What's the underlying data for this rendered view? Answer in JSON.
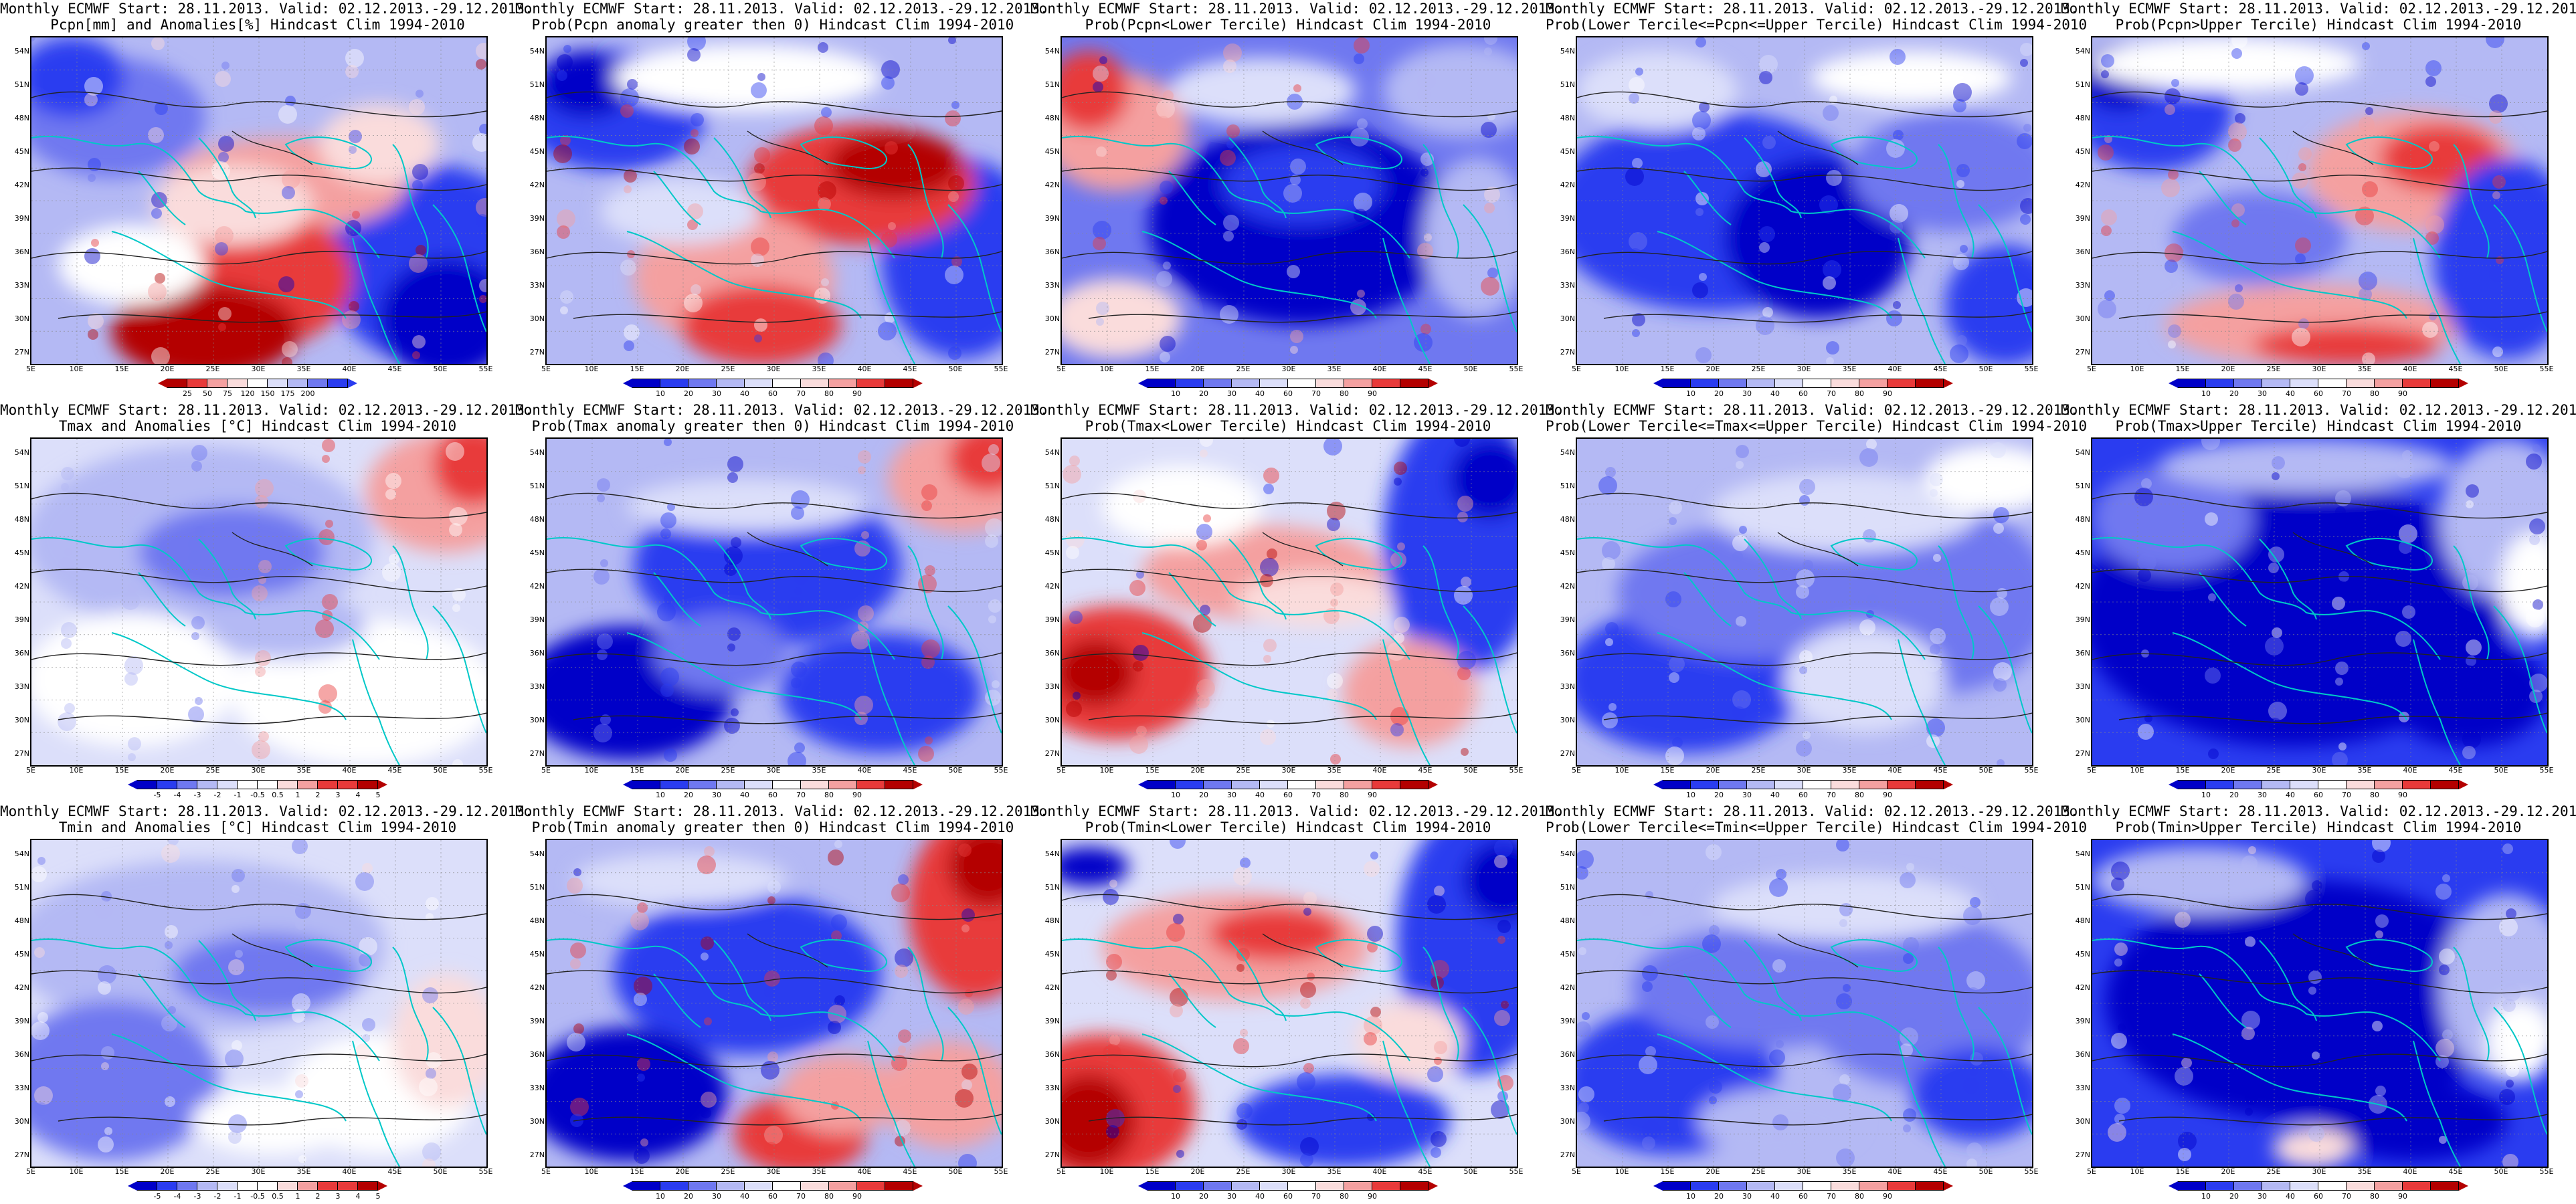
{
  "common_title": "Monthly ECMWF Start: 28.11.2013. Valid: 02.12.2013.-29.12.2013.",
  "lat_labels": [
    "54N",
    "51N",
    "48N",
    "45N",
    "42N",
    "39N",
    "36N",
    "33N",
    "30N",
    "27N"
  ],
  "lon_labels": [
    "5E",
    "10E",
    "15E",
    "20E",
    "25E",
    "30E",
    "35E",
    "40E",
    "45E",
    "50E",
    "55E"
  ],
  "prob_ticks": [
    "10",
    "20",
    "30",
    "40",
    "60",
    "70",
    "80",
    "90"
  ],
  "colors": {
    "deep_blue": "#0000c8",
    "blue": "#2a3cf0",
    "mid_blue": "#6f78f0",
    "light_blue": "#b4b9f4",
    "pale_blue": "#dcdffa",
    "white": "#ffffff",
    "pale_red": "#fadcdc",
    "light_red": "#f4a0a0",
    "red": "#e83a3a",
    "dark_red": "#b40000",
    "coast": "#00c8c8"
  },
  "panels": [
    {
      "title2": "Pcpn[mm] and Anomalies[%] Hindcast Clim 1994-2010",
      "kind": "anom",
      "ticks": [
        "25",
        "50",
        "75",
        "120",
        "150",
        "175",
        "200"
      ],
      "scheme": "pcpn_anom"
    },
    {
      "title2": "Prob(Pcpn anomaly greater then 0) Hindcast Clim 1994-2010",
      "kind": "prob",
      "scheme": "pcpn_gt0"
    },
    {
      "title2": "Prob(Pcpn<Lower Tercile) Hindcast Clim 1994-2010",
      "kind": "prob",
      "scheme": "pcpn_lower"
    },
    {
      "title2": "Prob(Lower Tercile<=Pcpn<=Upper Tercile) Hindcast Clim 1994-2010",
      "kind": "prob",
      "scheme": "pcpn_mid"
    },
    {
      "title2": "Prob(Pcpn>Upper Tercile) Hindcast Clim 1994-2010",
      "kind": "prob",
      "scheme": "pcpn_upper"
    },
    {
      "title2": "Tmax and Anomalies [°C] Hindcast Clim 1994-2010",
      "kind": "anom",
      "ticks": [
        "-5",
        "-4",
        "-3",
        "-2",
        "-1",
        "-0.5",
        "0.5",
        "1",
        "2",
        "3",
        "4",
        "5"
      ],
      "scheme": "tmax_anom"
    },
    {
      "title2": "Prob(Tmax anomaly greater then 0) Hindcast Clim 1994-2010",
      "kind": "prob",
      "scheme": "tmax_gt0"
    },
    {
      "title2": "Prob(Tmax<Lower Tercile) Hindcast Clim 1994-2010",
      "kind": "prob",
      "scheme": "tmax_lower"
    },
    {
      "title2": "Prob(Lower Tercile<=Tmax<=Upper Tercile) Hindcast Clim 1994-2010",
      "kind": "prob",
      "scheme": "tmax_mid"
    },
    {
      "title2": "Prob(Tmax>Upper Tercile) Hindcast Clim 1994-2010",
      "kind": "prob",
      "scheme": "tmax_upper"
    },
    {
      "title2": "Tmin and Anomalies [°C] Hindcast Clim 1994-2010",
      "kind": "anom",
      "ticks": [
        "-5",
        "-4",
        "-3",
        "-2",
        "-1",
        "-0.5",
        "0.5",
        "1",
        "2",
        "3",
        "4",
        "5"
      ],
      "scheme": "tmin_anom"
    },
    {
      "title2": "Prob(Tmin anomaly greater then 0) Hindcast Clim 1994-2010",
      "kind": "prob",
      "scheme": "tmin_gt0"
    },
    {
      "title2": "Prob(Tmin<Lower Tercile) Hindcast Clim 1994-2010",
      "kind": "prob",
      "scheme": "tmin_lower"
    },
    {
      "title2": "Prob(Lower Tercile<=Tmin<=Upper Tercile) Hindcast Clim 1994-2010",
      "kind": "prob",
      "scheme": "tmin_mid"
    },
    {
      "title2": "Prob(Tmin>Upper Tercile) Hindcast Clim 1994-2010",
      "kind": "prob",
      "scheme": "tmin_upper"
    }
  ]
}
